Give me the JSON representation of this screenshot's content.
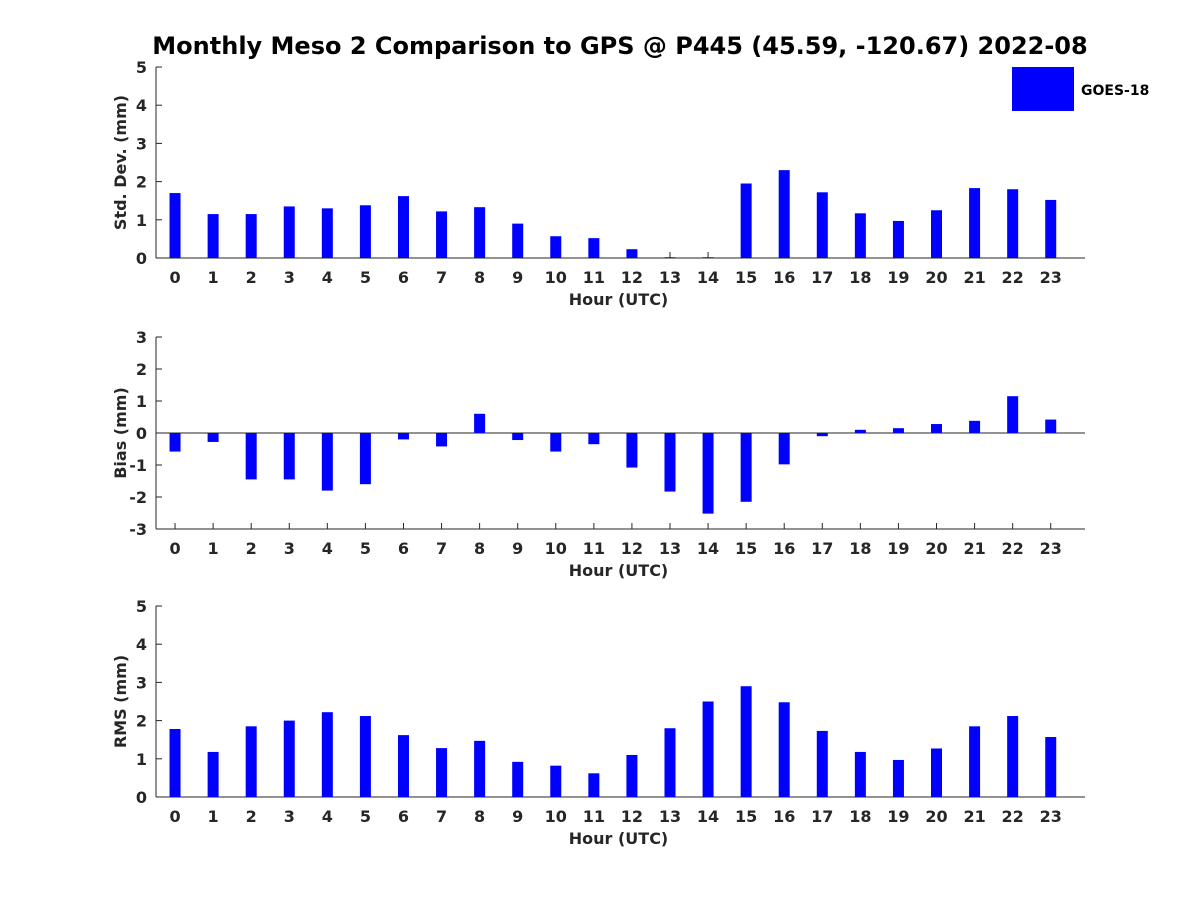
{
  "title": "Monthly Meso 2 Comparison to GPS @ P445 (45.59, -120.67) 2022-08",
  "legend": {
    "label": "GOES-18",
    "color": "#0000ff"
  },
  "chart_data": [
    {
      "type": "bar",
      "name": "std-dev",
      "title": "Monthly Meso 2 Comparison to GPS @ P445 (45.59, -120.67) 2022-08",
      "xlabel": "Hour (UTC)",
      "ylabel": "Std. Dev. (mm)",
      "ylim": [
        0,
        5
      ],
      "yticks": [
        0,
        1,
        2,
        3,
        4,
        5
      ],
      "categories": [
        "0",
        "1",
        "2",
        "3",
        "4",
        "5",
        "6",
        "7",
        "8",
        "9",
        "10",
        "11",
        "12",
        "13",
        "14",
        "15",
        "16",
        "17",
        "18",
        "19",
        "20",
        "21",
        "22",
        "23"
      ],
      "series": [
        {
          "name": "GOES-18",
          "color": "#0000ff",
          "values": [
            1.7,
            1.15,
            1.15,
            1.35,
            1.3,
            1.38,
            1.62,
            1.22,
            1.33,
            0.9,
            0.57,
            0.52,
            0.23,
            0.02,
            0.02,
            1.95,
            2.3,
            1.72,
            1.17,
            0.97,
            1.25,
            1.83,
            1.8,
            1.52
          ]
        }
      ]
    },
    {
      "type": "bar",
      "name": "bias",
      "xlabel": "Hour (UTC)",
      "ylabel": "Bias (mm)",
      "ylim": [
        -3,
        3
      ],
      "yticks": [
        -3,
        -2,
        -1,
        0,
        1,
        2,
        3
      ],
      "categories": [
        "0",
        "1",
        "2",
        "3",
        "4",
        "5",
        "6",
        "7",
        "8",
        "9",
        "10",
        "11",
        "12",
        "13",
        "14",
        "15",
        "16",
        "17",
        "18",
        "19",
        "20",
        "21",
        "22",
        "23"
      ],
      "series": [
        {
          "name": "GOES-18",
          "color": "#0000ff",
          "values": [
            -0.58,
            -0.28,
            -1.45,
            -1.45,
            -1.8,
            -1.6,
            -0.2,
            -0.42,
            0.6,
            -0.22,
            -0.58,
            -0.35,
            -1.08,
            -1.83,
            -2.52,
            -2.15,
            -0.98,
            -0.1,
            0.1,
            0.15,
            0.28,
            0.38,
            1.15,
            0.42
          ]
        }
      ]
    },
    {
      "type": "bar",
      "name": "rms",
      "xlabel": "Hour (UTC)",
      "ylabel": "RMS (mm)",
      "ylim": [
        0,
        5
      ],
      "yticks": [
        0,
        1,
        2,
        3,
        4,
        5
      ],
      "categories": [
        "0",
        "1",
        "2",
        "3",
        "4",
        "5",
        "6",
        "7",
        "8",
        "9",
        "10",
        "11",
        "12",
        "13",
        "14",
        "15",
        "16",
        "17",
        "18",
        "19",
        "20",
        "21",
        "22",
        "23"
      ],
      "series": [
        {
          "name": "GOES-18",
          "color": "#0000ff",
          "values": [
            1.78,
            1.18,
            1.85,
            2.0,
            2.22,
            2.12,
            1.62,
            1.28,
            1.47,
            0.92,
            0.82,
            0.62,
            1.1,
            1.8,
            2.5,
            2.9,
            2.48,
            1.73,
            1.18,
            0.97,
            1.27,
            1.85,
            2.12,
            1.57
          ]
        }
      ]
    }
  ]
}
